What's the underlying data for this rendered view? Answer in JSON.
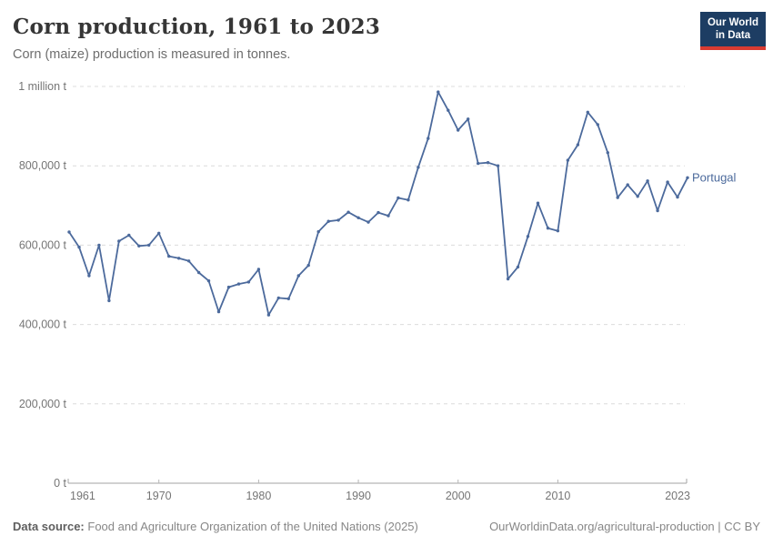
{
  "header": {
    "title": "Corn production, 1961 to 2023",
    "subtitle": "Corn (maize) production is measured in tonnes.",
    "logo": {
      "line1": "Our World",
      "line2": "in Data",
      "bg_color": "#1d3d63",
      "accent_color": "#d93b32"
    }
  },
  "chart_data": {
    "type": "line",
    "title": "Corn production, 1961 to 2023",
    "entity": "Portugal",
    "unit": "tonnes",
    "line_color": "#4c6a9c",
    "grid": "horizontal-dashed",
    "legend_position": "end-of-line-label",
    "xlim": [
      1961,
      2023
    ],
    "ylim": [
      0,
      1000000
    ],
    "x_ticks": [
      1961,
      1970,
      1980,
      1990,
      2000,
      2010,
      2023
    ],
    "y_ticks": [
      {
        "value": 0,
        "label": "0 t"
      },
      {
        "value": 200000,
        "label": "200,000 t"
      },
      {
        "value": 400000,
        "label": "400,000 t"
      },
      {
        "value": 600000,
        "label": "600,000 t"
      },
      {
        "value": 800000,
        "label": "800,000 t"
      },
      {
        "value": 1000000,
        "label": "1 million t"
      }
    ],
    "x": [
      1961,
      1962,
      1963,
      1964,
      1965,
      1966,
      1967,
      1968,
      1969,
      1970,
      1971,
      1972,
      1973,
      1974,
      1975,
      1976,
      1977,
      1978,
      1979,
      1980,
      1981,
      1982,
      1983,
      1984,
      1985,
      1986,
      1987,
      1988,
      1989,
      1990,
      1991,
      1992,
      1993,
      1994,
      1995,
      1996,
      1997,
      1998,
      1999,
      2000,
      2001,
      2002,
      2003,
      2004,
      2005,
      2006,
      2007,
      2008,
      2009,
      2010,
      2011,
      2012,
      2013,
      2014,
      2015,
      2016,
      2017,
      2018,
      2019,
      2020,
      2021,
      2022,
      2023
    ],
    "values": [
      633000,
      595000,
      523000,
      600000,
      460000,
      610000,
      625000,
      598000,
      600000,
      630000,
      572000,
      567000,
      560000,
      531000,
      510000,
      432000,
      494000,
      502000,
      507000,
      539000,
      424000,
      467000,
      465000,
      523000,
      549000,
      634000,
      660000,
      663000,
      683000,
      669000,
      658000,
      682000,
      674000,
      719000,
      714000,
      796000,
      869000,
      986000,
      940000,
      890000,
      918000,
      806000,
      808000,
      800000,
      515000,
      545000,
      622000,
      706000,
      643000,
      636000,
      814000,
      853000,
      935000,
      904000,
      833000,
      720000,
      752000,
      723000,
      762000,
      687000,
      759000,
      721000,
      770000
    ]
  },
  "footer": {
    "source_label": "Data source:",
    "source_text": "Food and Agriculture Organization of the United Nations (2025)",
    "right_text": "OurWorldinData.org/agricultural-production | CC BY"
  }
}
